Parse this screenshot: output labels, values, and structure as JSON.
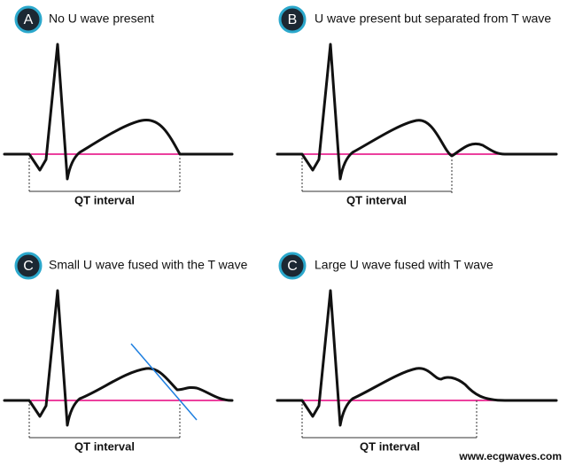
{
  "panels": [
    {
      "badge": "A",
      "title": "No U wave present",
      "interval_label": "QT interval"
    },
    {
      "badge": "B",
      "title": "U wave present but separated from T wave",
      "interval_label": "QT interval"
    },
    {
      "badge": "C",
      "title": "Small U wave fused with the T wave",
      "interval_label": "QT interval"
    },
    {
      "badge": "C",
      "title": "Large U wave fused with T wave",
      "interval_label": "QT interval"
    }
  ],
  "watermark": "www.ecgwaves.com"
}
